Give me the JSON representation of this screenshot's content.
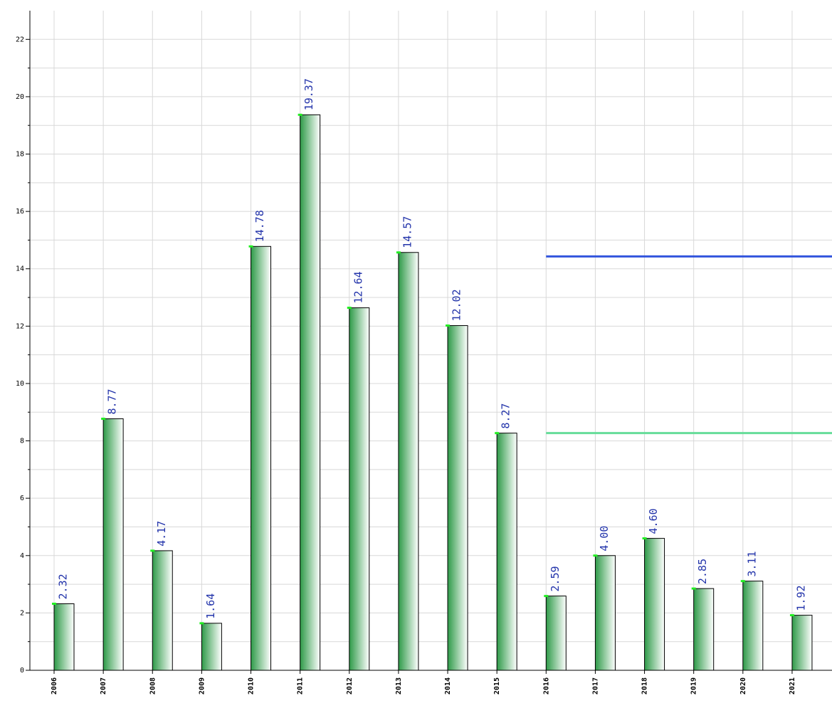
{
  "chart_data": {
    "type": "bar",
    "categories": [
      "2006",
      "2007",
      "2008",
      "2009",
      "2010",
      "2011",
      "2012",
      "2013",
      "2014",
      "2015",
      "2016",
      "2017",
      "2018",
      "2019",
      "2020",
      "2021"
    ],
    "values": [
      2.32,
      8.77,
      4.17,
      1.64,
      14.78,
      19.37,
      12.64,
      14.57,
      12.02,
      8.27,
      2.59,
      4.0,
      4.6,
      2.85,
      3.11,
      1.92
    ],
    "value_labels": [
      "2.32",
      "8.77",
      "4.17",
      "1.64",
      "14.78",
      "19.37",
      "12.64",
      "14.57",
      "12.02",
      "8.27",
      "2.59",
      "4.00",
      "4.60",
      "2.85",
      "3.11",
      "1.92"
    ],
    "color": "#2e9a48",
    "label_color": "#2233aa",
    "ylim": [
      0,
      23
    ],
    "yticks": [
      0,
      2,
      4,
      6,
      8,
      10,
      12,
      14,
      16,
      18,
      20,
      22
    ],
    "minor_yticks": [
      1,
      3,
      5,
      7,
      9,
      11,
      13,
      15,
      17,
      19,
      21
    ],
    "grid": true,
    "reference_lines": [
      {
        "value": 14.43,
        "color": "#3355dd",
        "from": "2016"
      },
      {
        "value": 8.27,
        "color": "#66dd99",
        "from": "2016"
      }
    ]
  }
}
